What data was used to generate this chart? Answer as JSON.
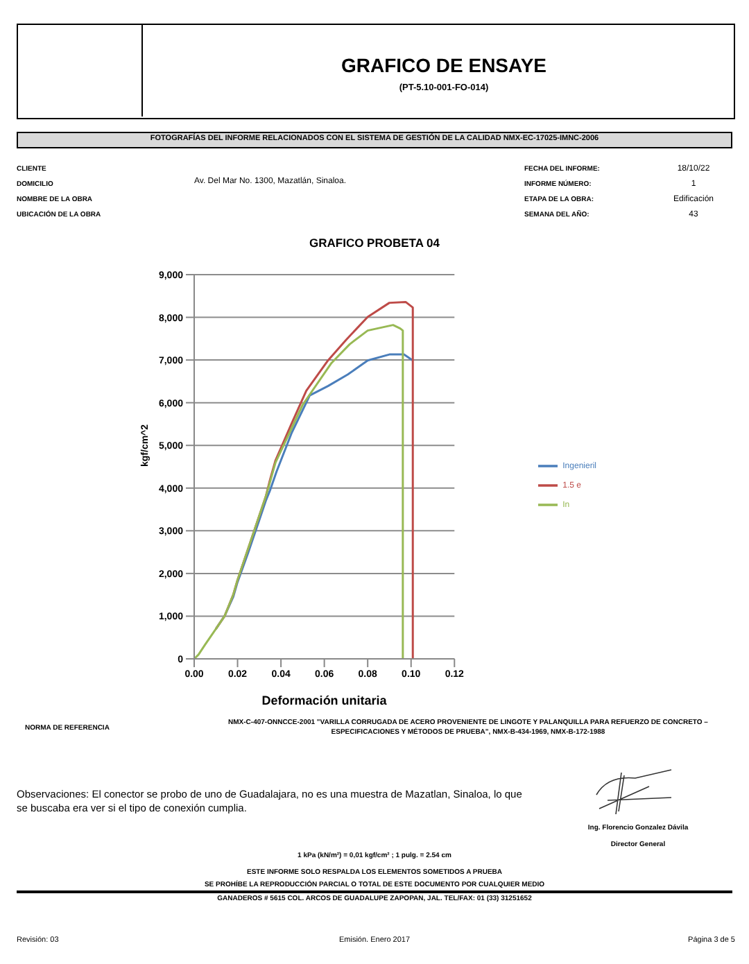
{
  "chart_data": {
    "type": "line",
    "title": "GRAFICO PROBETA 04",
    "xlabel": "Deformación unitaria",
    "ylabel": "kgf/cm^2",
    "xlim": [
      0,
      0.12
    ],
    "ylim": [
      0,
      9000
    ],
    "xticks": [
      {
        "value": 0,
        "label": "0.00"
      },
      {
        "value": 0.02,
        "label": "0.02"
      },
      {
        "value": 0.04,
        "label": "0.04"
      },
      {
        "value": 0.06,
        "label": "0.06"
      },
      {
        "value": 0.08,
        "label": "0.08"
      },
      {
        "value": 0.1,
        "label": "0.10"
      },
      {
        "value": 0.12,
        "label": "0.12"
      }
    ],
    "yticks": [
      {
        "value": 0,
        "label": "0"
      },
      {
        "value": 1000,
        "label": "1,000"
      },
      {
        "value": 2000,
        "label": "2,000"
      },
      {
        "value": 3000,
        "label": "3,000"
      },
      {
        "value": 4000,
        "label": "4,000"
      },
      {
        "value": 5000,
        "label": "5,000"
      },
      {
        "value": 6000,
        "label": "6,000"
      },
      {
        "value": 7000,
        "label": "7,000"
      },
      {
        "value": 8000,
        "label": "8,000"
      },
      {
        "value": 9000,
        "label": "9,000"
      }
    ],
    "grid": "y",
    "legend": "right",
    "marker": "none",
    "series": [
      {
        "name": "Ingenieril",
        "color": "#4a7ebb",
        "x": [
          0.01,
          0.014,
          0.018,
          0.02,
          0.025,
          0.03,
          0.033,
          0.035,
          0.038,
          0.045,
          0.0533,
          0.0617,
          0.0708,
          0.08,
          0.09,
          0.0967,
          0.1008
        ],
        "values": [
          700,
          1000,
          1450,
          1800,
          2500,
          3250,
          3700,
          3950,
          4390,
          5300,
          6170,
          6390,
          6660,
          6990,
          7130,
          7130,
          6990
        ]
      },
      {
        "name": "1.5 e",
        "color": "#be4b48",
        "x": [
          0.01,
          0.014,
          0.018,
          0.02,
          0.025,
          0.03,
          0.033,
          0.035,
          0.0375,
          0.045,
          0.0517,
          0.0617,
          0.07,
          0.08,
          0.09,
          0.0975,
          0.1008,
          0.1008
        ],
        "values": [
          700,
          1000,
          1500,
          1850,
          2600,
          3350,
          3800,
          4200,
          4650,
          5520,
          6280,
          6990,
          7470,
          8010,
          8340,
          8360,
          8230,
          0
        ]
      },
      {
        "name": "In",
        "color": "#98b954",
        "x": [
          0,
          0.002,
          0.005,
          0.01,
          0.014,
          0.018,
          0.02,
          0.025,
          0.03,
          0.033,
          0.035,
          0.0375,
          0.05,
          0.0633,
          0.0717,
          0.08,
          0.0917,
          0.095,
          0.0962,
          0.0962
        ],
        "values": [
          0,
          100,
          330,
          700,
          1000,
          1500,
          1850,
          2600,
          3350,
          3800,
          4150,
          4600,
          5950,
          6930,
          7370,
          7690,
          7820,
          7740,
          7690,
          0
        ]
      }
    ],
    "annotations": [
      "GRAFICO DE ENSAYE",
      "(PT-5.10-001-FO-014)",
      "FOTOGRAFÍAS DEL INFORME RELACIONADOS CON EL SISTEMA DE GESTIÓN DE LA CALIDAD NMX-EC-17025-IMNC-2006",
      "CLIENTE",
      "DOMICILIO",
      "NOMBRE DE LA OBRA",
      "UBICACIÓN DE LA OBRA",
      "Av. Del Mar No. 1300, Mazatlán, Sinaloa.",
      "FECHA DEL INFORME:",
      "INFORME NÚMERO:",
      "ETAPA DE LA OBRA:",
      "SEMANA DEL AÑO:",
      "18/10/22",
      "1",
      "Edificación",
      "43",
      "NORMA DE REFERENCIA",
      "NMX-C-407-ONNCCE-2001 \"VARILLA CORRUGADA DE ACERO PROVENIENTE DE LINGOTE Y PALANQUILLA PARA REFUERZO DE CONCRETO – ESPECIFICACIONES Y MÉTODOS DE PRUEBA\", NMX-B-434-1969, NMX-B-172-1988",
      "Observaciones:  El conector se probo de uno de Guadalajara, no es una muestra de Mazatlan, Sinaloa, lo que se buscaba era ver si el tipo de conexión cumplia.",
      "Ing. Florencio Gonzalez Dávila",
      "Director General",
      "1 kPa (kN/m²) = 0,01 kgf/cm² ; 1 pulg. = 2.54 cm",
      "ESTE INFORME SOLO RESPALDA LOS ELEMENTOS SOMETIDOS A PRUEBA",
      "SE PROHÍBE LA REPRODUCCIÓN PARCIAL O TOTAL DE ESTE DOCUMENTO POR CUALQUIER MEDIO",
      "GANADEROS # 5615 COL. ARCOS DE GUADALUPE ZAPOPAN, JAL. TEL/FAX: 01 (33) 31251652",
      "Revisión: 03",
      "Emisión. Enero 2017",
      "Página 3 de 5"
    ]
  }
}
